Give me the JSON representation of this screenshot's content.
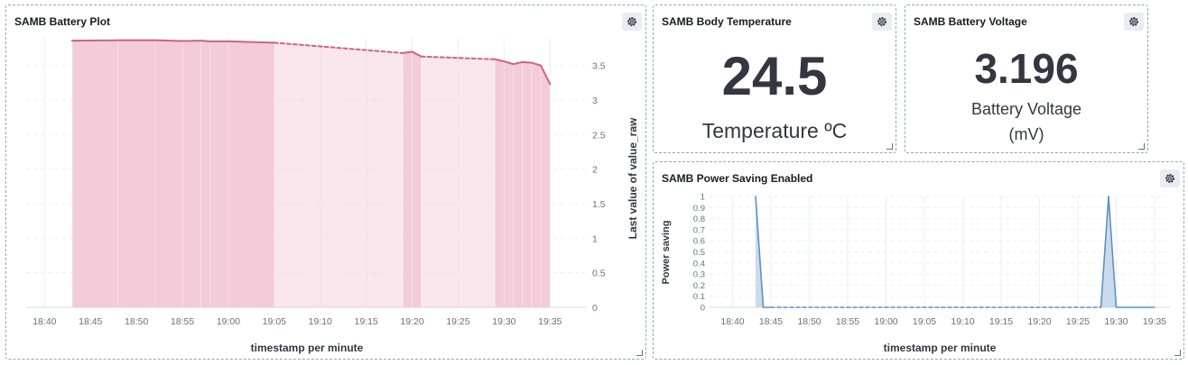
{
  "panels": {
    "battery_plot": {
      "title": "SAMB Battery Plot",
      "xlabel": "timestamp per minute",
      "ylabel": "Last value of value_raw"
    },
    "body_temperature": {
      "title": "SAMB Body Temperature",
      "value": "24.5",
      "label": "Temperature ºC"
    },
    "battery_voltage": {
      "title": "SAMB Battery Voltage",
      "value": "3.196",
      "label_line1": "Battery Voltage",
      "label_line2": "(mV)"
    },
    "power_saving": {
      "title": "SAMB Power Saving Enabled",
      "xlabel": "timestamp per minute",
      "ylabel": "Power saving"
    }
  },
  "icons": {
    "settings": "gear-icon",
    "resize": "resize-handle-icon"
  },
  "colors": {
    "battery_series": "#d36086",
    "battery_fill": "#f1c9d6",
    "power_series": "#6092c0",
    "power_fill": "#c5d6ea"
  },
  "chart_data": [
    {
      "id": "battery",
      "type": "area",
      "xlabel": "timestamp per minute",
      "ylabel": "Last value of value_raw",
      "ylim": [
        0,
        3.9
      ],
      "yticks": [
        0,
        0.5,
        1,
        1.5,
        2,
        2.5,
        3,
        3.5
      ],
      "ytick_labels": [
        "0",
        "0.5",
        "1",
        "1.5",
        "2",
        "2.5",
        "3",
        "3.5"
      ],
      "xlim": [
        "18:38",
        "19:39"
      ],
      "xticks": [
        "18:40",
        "18:45",
        "18:50",
        "18:55",
        "19:00",
        "19:05",
        "19:10",
        "19:15",
        "19:20",
        "19:25",
        "19:30",
        "19:35"
      ],
      "y_axis_position": "right",
      "grid": true,
      "series": [
        {
          "points": [
            [
              "18:43",
              3.86
            ],
            [
              "18:48",
              3.865
            ],
            [
              "18:52",
              3.865
            ],
            [
              "18:55",
              3.855
            ],
            [
              "18:57",
              3.86
            ],
            [
              "18:58",
              3.85
            ],
            [
              "19:00",
              3.85
            ],
            [
              "19:05",
              3.83
            ],
            [
              "19:19",
              3.68
            ],
            [
              "19:20",
              3.7
            ],
            [
              "19:21",
              3.63
            ],
            [
              "19:29",
              3.59
            ],
            [
              "19:30",
              3.56
            ],
            [
              "19:31",
              3.52
            ],
            [
              "19:32",
              3.55
            ],
            [
              "19:33",
              3.54
            ],
            [
              "19:34",
              3.5
            ],
            [
              "19:35",
              3.23
            ]
          ],
          "dashed_between": [
            [
              "19:05",
              "19:19"
            ],
            [
              "19:21",
              "19:29"
            ]
          ]
        }
      ]
    },
    {
      "id": "power_saving",
      "type": "area",
      "xlabel": "timestamp per minute",
      "ylabel": "Power saving",
      "ylim": [
        0,
        1
      ],
      "yticks": [
        0,
        0.1,
        0.2,
        0.3,
        0.4,
        0.5,
        0.6,
        0.7,
        0.8,
        0.9,
        1
      ],
      "ytick_labels": [
        "0",
        "0.1",
        "0.2",
        "0.3",
        "0.4",
        "0.5",
        "0.6",
        "0.7",
        "0.8",
        "0.9",
        "1"
      ],
      "xlim": [
        "18:37",
        "19:37"
      ],
      "xticks": [
        "18:40",
        "18:45",
        "18:50",
        "18:55",
        "19:00",
        "19:05",
        "19:10",
        "19:15",
        "19:20",
        "19:25",
        "19:30",
        "19:35"
      ],
      "y_axis_position": "left",
      "grid": true,
      "series": [
        {
          "points": [
            [
              "18:43",
              1
            ],
            [
              "18:44",
              0
            ],
            [
              "18:45",
              0
            ],
            [
              "19:28",
              0
            ],
            [
              "19:29",
              1
            ],
            [
              "19:30",
              0
            ],
            [
              "19:35",
              0
            ]
          ],
          "dashed_between": [
            [
              "18:45",
              "19:28"
            ]
          ]
        }
      ]
    }
  ]
}
